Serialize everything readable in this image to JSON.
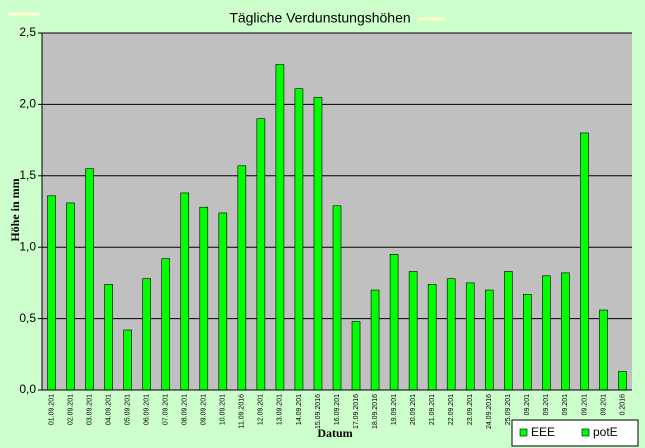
{
  "chart_data": {
    "type": "bar",
    "title": "Tägliche Verdunstungshöhen",
    "y_label": "Höhe in mm",
    "x_label": "Datum",
    "categories": [
      "01.09.201",
      "02.09.201",
      "03.09.201",
      "04.09.201",
      "05.09.201",
      "06.09.201",
      "07.09.201",
      "08.09.201",
      "09.09.201",
      "10.09.201",
      "11.09.2016",
      "12.09.201",
      "13.09.201",
      "14.09.201",
      "15.09.2016",
      "16.09.201",
      "17.09.2016",
      "18.09.2016",
      "19.09.201",
      "20.09.201",
      "21.09.201",
      "22.09.201",
      "23.09.201",
      "24.09.2016",
      "25.09.201",
      "09.201",
      "09.201",
      "09.201",
      "09.201",
      "09.201",
      "0.2016"
    ],
    "series": [
      {
        "name": "EEE",
        "color": "#00ff00",
        "values": [
          null,
          null,
          null,
          null,
          null,
          null,
          null,
          null,
          null,
          null,
          null,
          null,
          null,
          null,
          null,
          null,
          null,
          null,
          null,
          null,
          null,
          null,
          null,
          null,
          null,
          null,
          null,
          null,
          null,
          null,
          null
        ]
      },
      {
        "name": "potE",
        "color": "#00ff00",
        "values": [
          1.36,
          1.31,
          1.55,
          0.74,
          0.42,
          0.78,
          0.92,
          1.38,
          1.28,
          1.24,
          1.57,
          1.9,
          2.28,
          2.11,
          2.05,
          1.29,
          0.48,
          0.7,
          0.95,
          0.83,
          0.74,
          0.78,
          0.75,
          0.7,
          0.83,
          0.67,
          0.8,
          0.82,
          1.8,
          0.56,
          0.13
        ]
      }
    ],
    "ylim": [
      0,
      2.5
    ],
    "yticks": [
      {
        "value": 0,
        "label": "0,0"
      },
      {
        "value": 0.5,
        "label": "0,5"
      },
      {
        "value": 1,
        "label": "1,0"
      },
      {
        "value": 1.5,
        "label": "1,5"
      },
      {
        "value": 2,
        "label": "2,0"
      },
      {
        "value": 2.5,
        "label": "2,5"
      }
    ],
    "grid": true
  }
}
